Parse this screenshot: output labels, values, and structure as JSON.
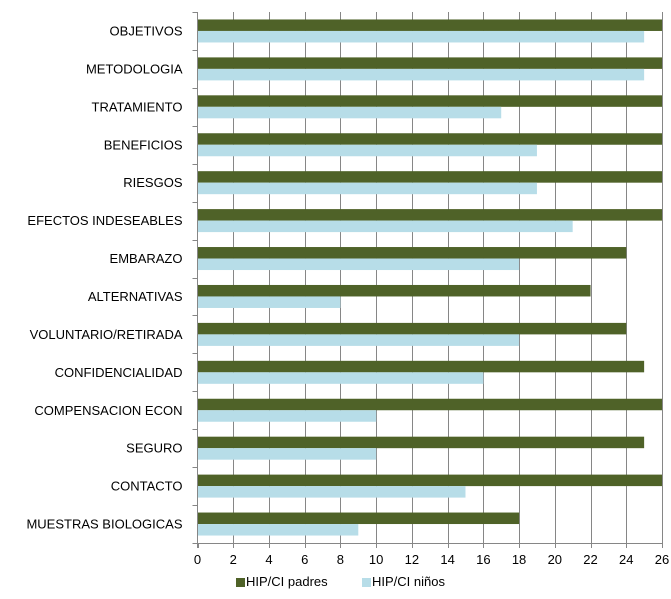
{
  "chart_data": {
    "type": "bar",
    "orientation": "horizontal",
    "title": "",
    "xlabel": "",
    "ylabel": "",
    "categories": [
      "OBJETIVOS",
      "METODOLOGIA",
      "TRATAMIENTO",
      "BENEFICIOS",
      "RIESGOS",
      "EFECTOS INDESEABLES",
      "EMBARAZO",
      "ALTERNATIVAS",
      "VOLUNTARIO/RETIRADA",
      "CONFIDENCIALIDAD",
      "COMPENSACION ECON",
      "SEGURO",
      "CONTACTO",
      "MUESTRAS BIOLOGICAS"
    ],
    "series": [
      {
        "name": "HIP/CI padres",
        "color": "#4f6228",
        "values": [
          26,
          26,
          26,
          26,
          26,
          26,
          24,
          22,
          24,
          25,
          26,
          25,
          26,
          18
        ]
      },
      {
        "name": "HIP/CI niños",
        "color": "#b7dde8",
        "values": [
          25,
          25,
          17,
          19,
          19,
          21,
          18,
          8,
          18,
          16,
          10,
          10,
          15,
          9
        ]
      }
    ],
    "xlim": [
      0,
      26
    ],
    "xticks": [
      0,
      2,
      4,
      6,
      8,
      10,
      12,
      14,
      16,
      18,
      20,
      22,
      24,
      26
    ],
    "grid": "vertical",
    "legend_position": "bottom",
    "gridline_color": "#868686",
    "axis_color": "#868686"
  }
}
